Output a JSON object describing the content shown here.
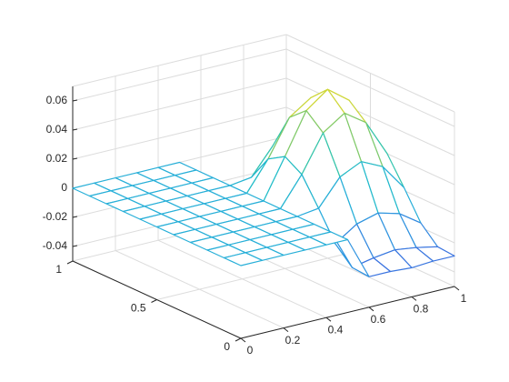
{
  "chart_data": {
    "type": "mesh",
    "x": [
      0,
      0.1,
      0.2,
      0.3,
      0.4,
      0.5,
      0.6,
      0.7,
      0.8,
      0.9,
      1
    ],
    "y": [
      0,
      0.1,
      0.2,
      0.3,
      0.4,
      0.5,
      0.6,
      0.7,
      0.8,
      0.9,
      1
    ],
    "z": [
      [
        0,
        0,
        0,
        0,
        0,
        0,
        -0.029,
        -0.029,
        -0.03,
        -0.029,
        -0.029
      ],
      [
        0,
        0,
        0,
        0,
        0,
        0,
        -0.028,
        -0.025,
        -0.023,
        -0.025,
        -0.028
      ],
      [
        0,
        0,
        0,
        0,
        0,
        0,
        -0.017,
        -0.007,
        -0.003,
        -0.007,
        -0.017
      ],
      [
        0,
        0,
        0,
        0,
        0,
        0,
        0.002,
        0.02,
        0.027,
        0.02,
        0.002
      ],
      [
        0,
        0,
        0,
        0,
        0,
        0,
        0.02,
        0.045,
        0.055,
        0.045,
        0.02
      ],
      [
        0,
        0,
        0,
        0,
        0,
        0,
        0.027,
        0.055,
        0.066,
        0.055,
        0.027
      ],
      [
        0,
        0,
        0,
        0,
        0,
        0,
        0.02,
        0.045,
        0.055,
        0.045,
        0.02
      ],
      [
        0,
        0,
        0,
        0,
        0,
        0,
        0.002,
        0.02,
        0.027,
        0.02,
        0.002
      ],
      [
        0,
        0,
        0,
        0,
        0,
        0,
        -0.017,
        -0.007,
        -0.003,
        -0.007,
        -0.017
      ],
      [
        0,
        0,
        0,
        0,
        0,
        0,
        -0.028,
        -0.025,
        -0.023,
        -0.025,
        -0.028
      ],
      [
        0,
        0,
        0,
        0,
        0,
        0,
        -0.029,
        -0.029,
        -0.03,
        -0.029,
        -0.029
      ]
    ],
    "xlim": [
      0,
      1
    ],
    "ylim": [
      0,
      1
    ],
    "zlim": [
      -0.05,
      0.07
    ],
    "xticks": [
      0,
      0.2,
      0.4,
      0.6,
      0.8,
      1
    ],
    "yticks": [
      0,
      0.5,
      1
    ],
    "zticks": [
      -0.04,
      -0.02,
      0,
      0.02,
      0.04,
      0.06
    ],
    "grid": true,
    "colormap": [
      "#3d6fe0",
      "#2aa8e0",
      "#1fc4c0",
      "#9ccc52",
      "#f8e024"
    ]
  }
}
